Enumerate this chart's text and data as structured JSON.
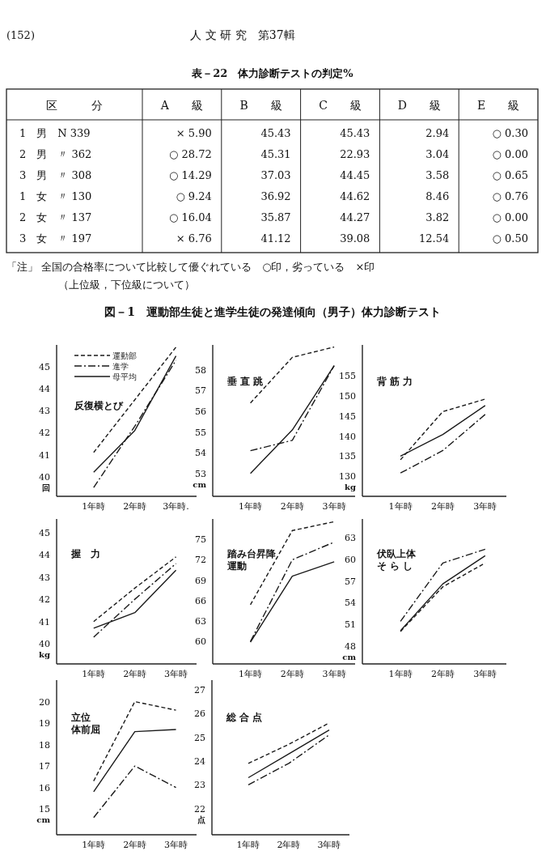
{
  "chart_data": [
    {
      "type": "other",
      "title": "表－22　体力診断テストの判定%",
      "categories": [
        "区　　　分",
        "A　　級",
        "B　　級",
        "C　　級",
        "D　　級",
        "E　　級"
      ],
      "y_categories": [
        "1　男　N 339",
        "2　男　〃 362",
        "3　男　〃 308",
        "1　女　〃 130",
        "2　女　〃 137",
        "3　女　〃 197"
      ],
      "cell_labels": [
        [
          "× 5.90",
          "45.43",
          "45.43",
          "2.94",
          "○ 0.30"
        ],
        [
          "○ 28.72",
          "45.31",
          "22.93",
          "3.04",
          "○ 0.00"
        ],
        [
          "○ 14.29",
          "37.03",
          "44.45",
          "3.58",
          "○ 0.65"
        ],
        [
          "○ 9.24",
          "36.92",
          "44.62",
          "8.46",
          "○ 0.76"
        ],
        [
          "○ 16.04",
          "35.87",
          "44.27",
          "3.82",
          "○ 0.00"
        ],
        [
          "× 6.76",
          "41.12",
          "39.08",
          "12.54",
          "○ 0.50"
        ]
      ],
      "annotations": [
        "(152)",
        "人 文 研 究　第37輯",
        "「注」 全国の合格率について比較して優ぐれている　○印，劣っている　×印",
        "（上位級，下位級について）"
      ]
    },
    {
      "type": "other",
      "title": "図－1　運動部生徒と進学生徒の発達傾向（男子）体力診断テスト"
    },
    {
      "type": "line",
      "title": "反復横とび",
      "ylabel": "回",
      "categories": [
        "1年時",
        "2年時",
        "3年時."
      ],
      "ylim": [
        39.1,
        46.0
      ],
      "yticks": [
        40,
        41,
        42,
        43,
        44,
        45
      ],
      "legend": "top left",
      "series": [
        {
          "name": "運動部",
          "color": "#1a1a1a",
          "line_style": "dashed",
          "values": [
            41.1,
            43.5,
            45.9
          ]
        },
        {
          "name": "進学",
          "color": "#1a1a1a",
          "line_style": "dashdot",
          "values": [
            39.5,
            42.3,
            45.3
          ]
        },
        {
          "name": "母平均",
          "color": "#1a1a1a",
          "line_style": "solid",
          "values": [
            40.2,
            42.1,
            45.5
          ]
        }
      ]
    },
    {
      "type": "line",
      "title": "垂 直 跳",
      "ylabel": "cm",
      "categories": [
        "1年時",
        "2年時",
        "3年時"
      ],
      "ylim": [
        51.9,
        59.2
      ],
      "yticks": [
        53,
        54,
        55,
        56,
        57,
        58
      ],
      "series": [
        {
          "color": "#1a1a1a",
          "line_style": "dashed",
          "values": [
            56.4,
            58.6,
            59.1
          ]
        },
        {
          "color": "#1a1a1a",
          "line_style": "dashdot",
          "values": [
            54.1,
            54.6,
            58.2
          ]
        },
        {
          "color": "#1a1a1a",
          "line_style": "solid",
          "values": [
            53.0,
            55.1,
            58.2
          ]
        }
      ]
    },
    {
      "type": "line",
      "title": "背 筋 力",
      "ylabel": "kg",
      "categories": [
        "1年時",
        "2年時",
        "3年時"
      ],
      "ylim": [
        125,
        162.7
      ],
      "yticks": [
        130,
        135,
        140,
        145,
        150,
        155
      ],
      "series": [
        {
          "color": "#1a1a1a",
          "line_style": "dashed",
          "values": [
            134.1,
            146.1,
            149.2
          ]
        },
        {
          "color": "#1a1a1a",
          "line_style": "dashdot",
          "values": [
            130.8,
            136.4,
            145.4
          ]
        },
        {
          "color": "#1a1a1a",
          "line_style": "solid",
          "values": [
            135.0,
            140.4,
            147.6
          ]
        }
      ]
    },
    {
      "type": "line",
      "title": "握　力",
      "ylabel": "kg",
      "categories": [
        "1年時",
        "2年時",
        "3年時"
      ],
      "ylim": [
        39.1,
        45.6
      ],
      "yticks": [
        40,
        41,
        42,
        43,
        44,
        45
      ],
      "series": [
        {
          "color": "#1a1a1a",
          "line_style": "dashed",
          "values": [
            41.0,
            42.5,
            43.9
          ]
        },
        {
          "color": "#1a1a1a",
          "line_style": "dashdot",
          "values": [
            40.3,
            42.0,
            43.6
          ]
        },
        {
          "color": "#1a1a1a",
          "line_style": "solid",
          "values": [
            40.7,
            41.4,
            43.3
          ]
        }
      ]
    },
    {
      "type": "line",
      "title": "踏み台昇降",
      "annotations": [
        "運動"
      ],
      "categories": [
        "1年時",
        "2年時",
        "3年時"
      ],
      "ylim": [
        56.7,
        78
      ],
      "yticks": [
        60,
        63,
        66,
        69,
        72,
        75
      ],
      "series": [
        {
          "color": "#1a1a1a",
          "line_style": "dashed",
          "values": [
            65.4,
            76.3,
            77.6
          ]
        },
        {
          "color": "#1a1a1a",
          "line_style": "dashdot",
          "values": [
            60.0,
            72.0,
            74.6
          ]
        },
        {
          "color": "#1a1a1a",
          "line_style": "solid",
          "values": [
            59.9,
            69.6,
            71.7
          ]
        }
      ]
    },
    {
      "type": "line",
      "title": "伏臥上体",
      "annotations": [
        "そ ら し"
      ],
      "ylabel": "cm",
      "categories": [
        "1年時",
        "2年時",
        "3年時"
      ],
      "ylim": [
        45.5,
        65.6
      ],
      "yticks": [
        48,
        51,
        54,
        57,
        60,
        63
      ],
      "series": [
        {
          "color": "#1a1a1a",
          "line_style": "dashed",
          "values": [
            50.0,
            56.2,
            59.5
          ]
        },
        {
          "color": "#1a1a1a",
          "line_style": "dashdot",
          "values": [
            51.4,
            59.5,
            61.4
          ]
        },
        {
          "color": "#1a1a1a",
          "line_style": "solid",
          "values": [
            50.1,
            56.6,
            60.5
          ]
        }
      ]
    },
    {
      "type": "line",
      "title": "立位",
      "annotations": [
        "体前屈"
      ],
      "ylabel": "cm",
      "categories": [
        "1年時",
        "2年時",
        "3年時"
      ],
      "ylim": [
        13.8,
        21.0
      ],
      "yticks": [
        15,
        16,
        17,
        18,
        19,
        20
      ],
      "series": [
        {
          "color": "#1a1a1a",
          "line_style": "dashed",
          "values": [
            16.3,
            20.0,
            19.6
          ]
        },
        {
          "color": "#1a1a1a",
          "line_style": "dashdot",
          "values": [
            14.6,
            17.0,
            16.0
          ]
        },
        {
          "color": "#1a1a1a",
          "line_style": "solid",
          "values": [
            15.8,
            18.6,
            18.7
          ]
        }
      ]
    },
    {
      "type": "line",
      "title": "総 合 点",
      "ylabel": "点",
      "categories": [
        "1年時",
        "2年時",
        "3年時"
      ],
      "ylim": [
        20.9,
        27.4
      ],
      "yticks": [
        22,
        23,
        24,
        25,
        26,
        27
      ],
      "series": [
        {
          "color": "#1a1a1a",
          "line_style": "dashed",
          "values": [
            23.9,
            24.7,
            25.6
          ]
        },
        {
          "color": "#1a1a1a",
          "line_style": "dashdot",
          "values": [
            23.0,
            23.9,
            25.1
          ]
        },
        {
          "color": "#1a1a1a",
          "line_style": "solid",
          "values": [
            23.3,
            24.3,
            25.3
          ]
        }
      ]
    }
  ]
}
